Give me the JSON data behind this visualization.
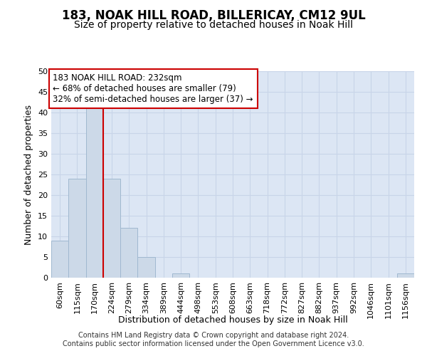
{
  "title": "183, NOAK HILL ROAD, BILLERICAY, CM12 9UL",
  "subtitle": "Size of property relative to detached houses in Noak Hill",
  "xlabel": "Distribution of detached houses by size in Noak Hill",
  "ylabel": "Number of detached properties",
  "categories": [
    "60sqm",
    "115sqm",
    "170sqm",
    "224sqm",
    "279sqm",
    "334sqm",
    "389sqm",
    "444sqm",
    "498sqm",
    "553sqm",
    "608sqm",
    "663sqm",
    "718sqm",
    "772sqm",
    "827sqm",
    "882sqm",
    "937sqm",
    "992sqm",
    "1046sqm",
    "1101sqm",
    "1156sqm"
  ],
  "values": [
    9,
    24,
    41,
    24,
    12,
    5,
    0,
    1,
    0,
    0,
    0,
    0,
    0,
    0,
    0,
    0,
    0,
    0,
    0,
    0,
    1
  ],
  "bar_color": "#ccd9e8",
  "bar_edge_color": "#a0b8d0",
  "reference_line_x": 3,
  "reference_line_color": "#cc0000",
  "annotation_text": "183 NOAK HILL ROAD: 232sqm\n← 68% of detached houses are smaller (79)\n32% of semi-detached houses are larger (37) →",
  "annotation_box_color": "#ffffff",
  "annotation_box_edge": "#cc0000",
  "ylim": [
    0,
    50
  ],
  "yticks": [
    0,
    5,
    10,
    15,
    20,
    25,
    30,
    35,
    40,
    45,
    50
  ],
  "grid_color": "#c8d4e8",
  "background_color": "#dce6f4",
  "footnote": "Contains HM Land Registry data © Crown copyright and database right 2024.\nContains public sector information licensed under the Open Government Licence v3.0.",
  "title_fontsize": 12,
  "subtitle_fontsize": 10,
  "axis_label_fontsize": 9,
  "tick_fontsize": 8,
  "annotation_fontsize": 8.5,
  "footnote_fontsize": 7
}
